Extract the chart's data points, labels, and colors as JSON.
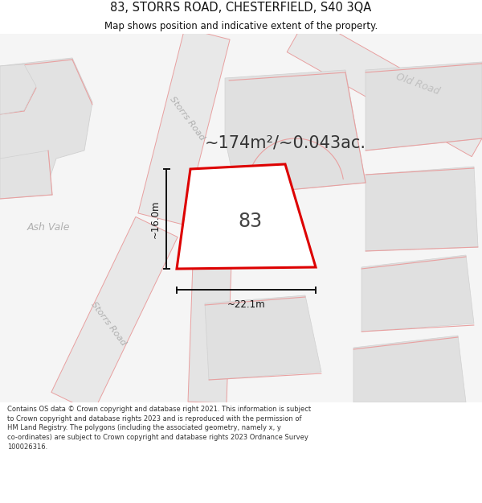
{
  "title_line1": "83, STORRS ROAD, CHESTERFIELD, S40 3QA",
  "title_line2": "Map shows position and indicative extent of the property.",
  "area_text": "~174m²/~0.043ac.",
  "label_83": "83",
  "dim_height": "~16.0m",
  "dim_width": "~22.1m",
  "footer_text": "Contains OS data © Crown copyright and database right 2021. This information is subject to Crown copyright and database rights 2023 and is reproduced with the permission of HM Land Registry. The polygons (including the associated geometry, namely x, y co-ordinates) are subject to Crown copyright and database rights 2023 Ordnance Survey 100026316.",
  "bg_color": "#ffffff",
  "map_bg": "#f2f2f2",
  "road_fill": "#e8e8e8",
  "road_pink": "#e8a0a0",
  "property_fill": "#ffffff",
  "property_edge": "#dd0000",
  "dim_color": "#111111",
  "label_gray": "#aaaaaa",
  "text_dark": "#555555",
  "title_color": "#111111",
  "footer_color": "#333333",
  "title_fs": 10.5,
  "subtitle_fs": 8.5,
  "area_fs": 15,
  "label83_fs": 17,
  "road_label_fs": 8,
  "ash_vale_fs": 9,
  "old_road_fs": 9,
  "dim_fs": 8.5,
  "footer_fs": 6.0
}
